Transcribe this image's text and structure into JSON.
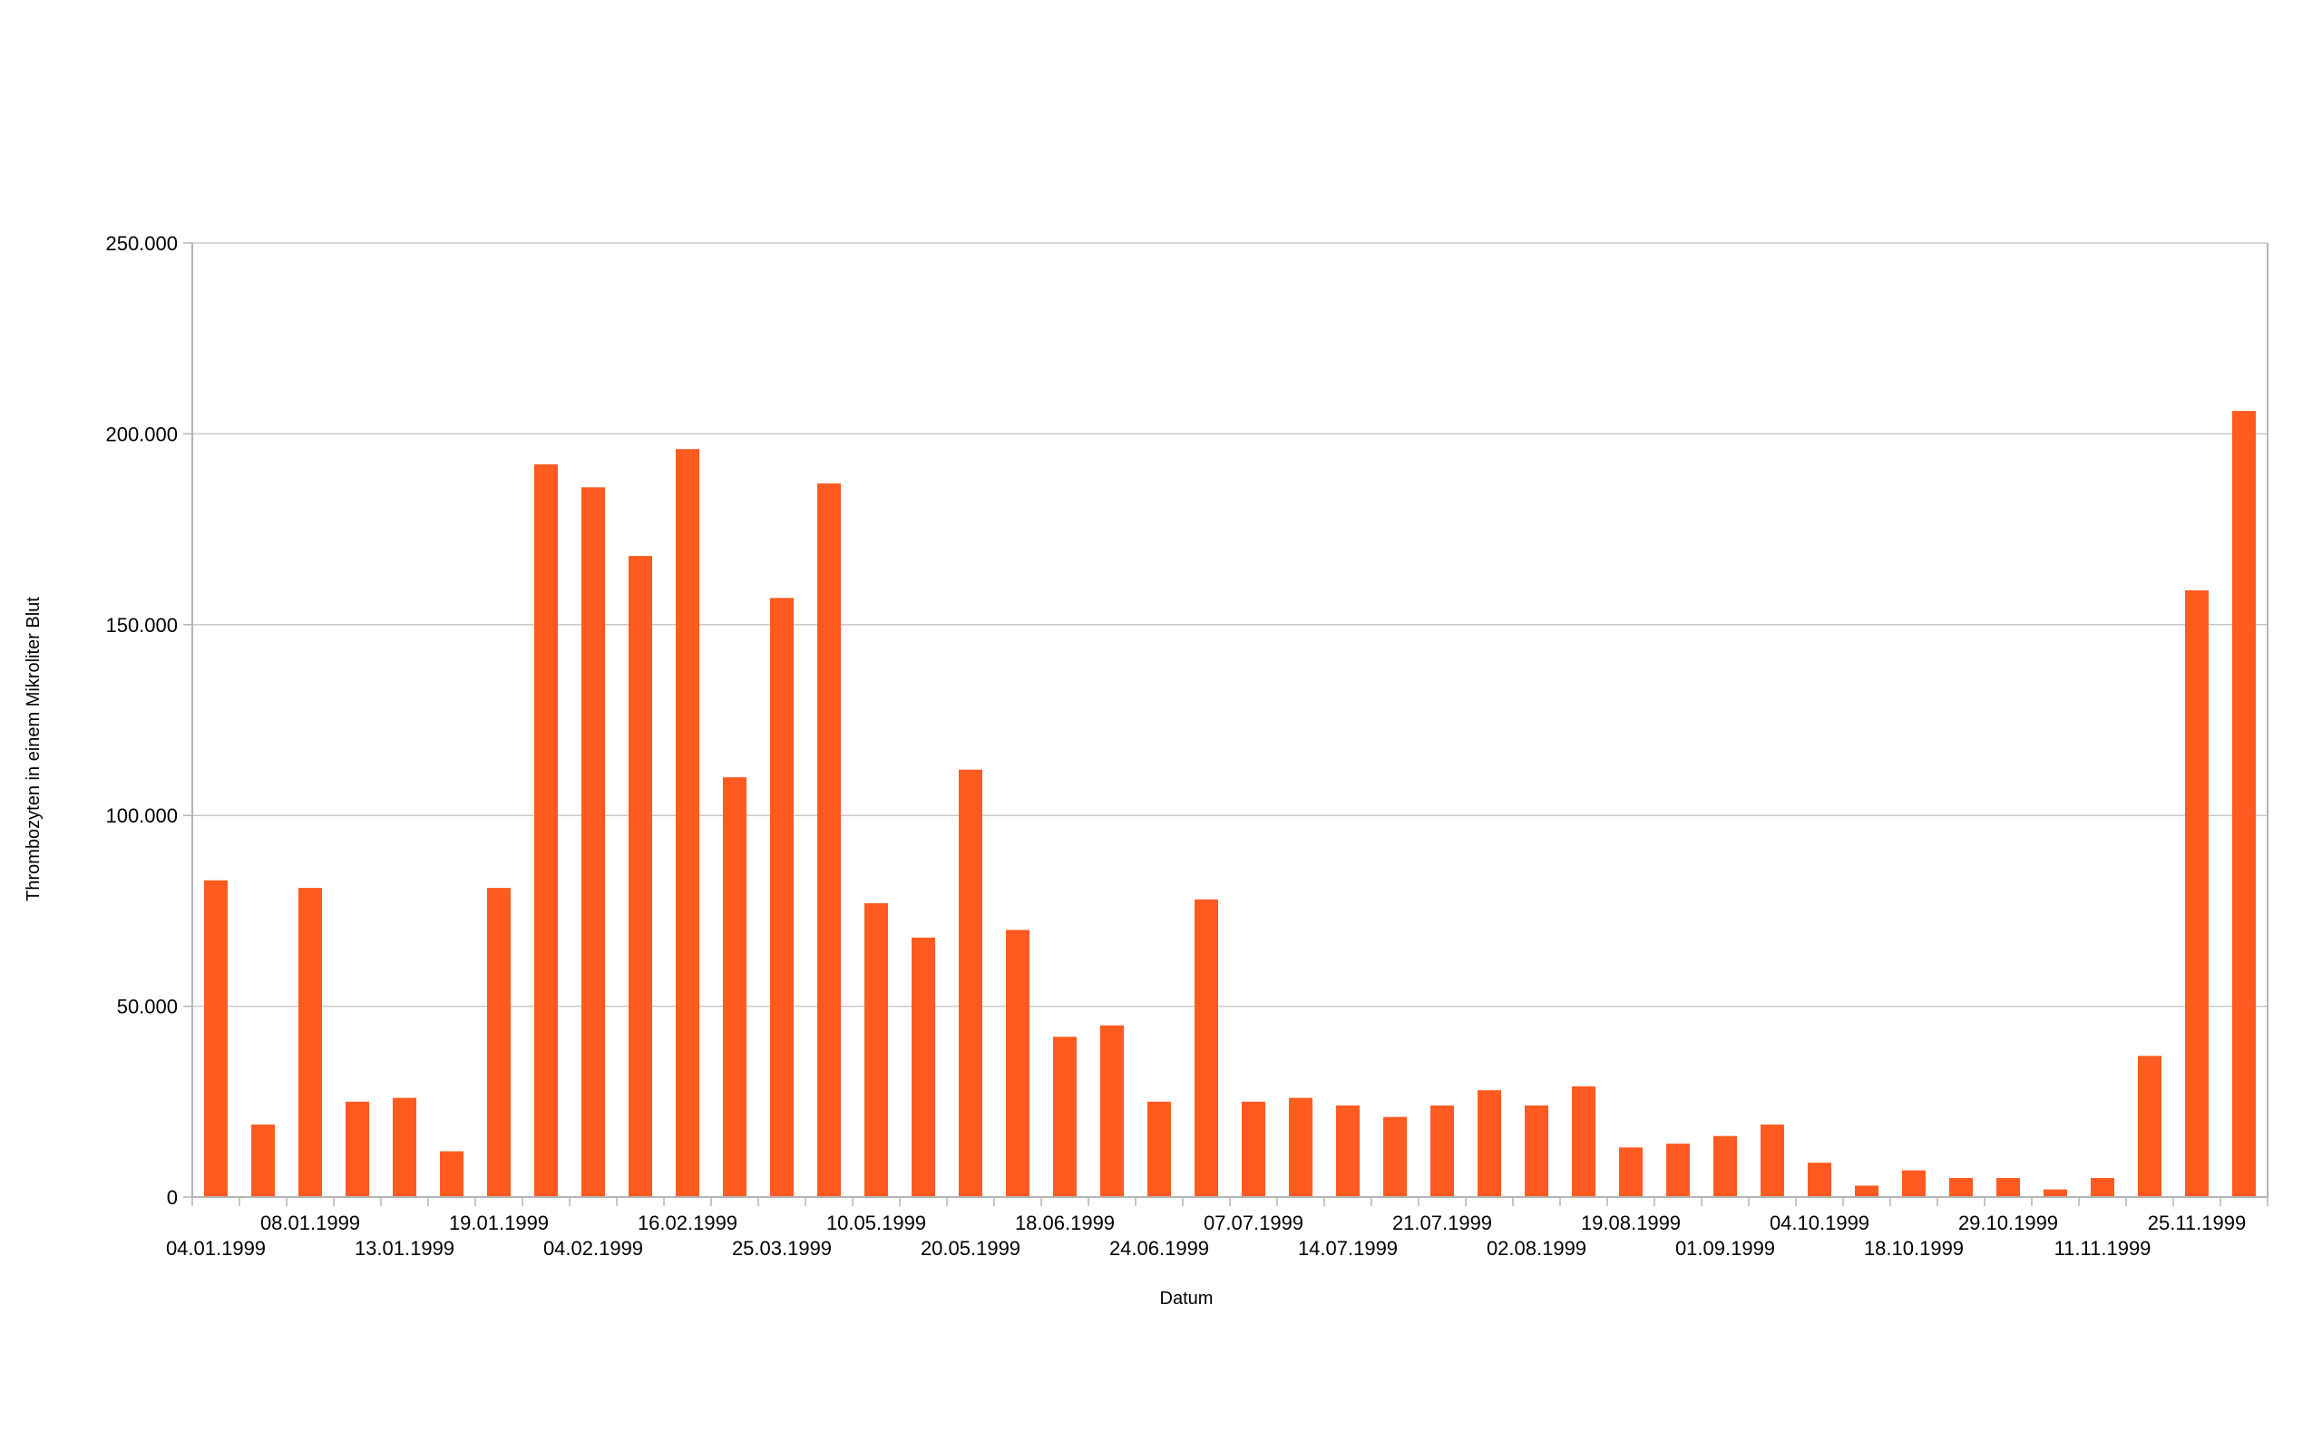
{
  "chart_data": {
    "type": "bar",
    "title": "",
    "xlabel": "Datum",
    "ylabel": "Thrombozyten in einem Mikroliter Blut",
    "ylim": [
      0,
      250000
    ],
    "yticks": [
      0,
      50000,
      100000,
      150000,
      200000,
      250000
    ],
    "ytick_labels": [
      "0",
      "50.000",
      "100.000",
      "150.000",
      "200.000",
      "250.000"
    ],
    "grid": true,
    "legend": "none",
    "bar_color": "#ff5a1f",
    "grid_color": "#c8c8c8",
    "axis_color": "#b4b4b4",
    "values": [
      83000,
      19000,
      81000,
      25000,
      26000,
      12000,
      81000,
      192000,
      186000,
      168000,
      196000,
      110000,
      157000,
      187000,
      77000,
      68000,
      112000,
      70000,
      42000,
      45000,
      25000,
      78000,
      25000,
      26000,
      24000,
      21000,
      24000,
      28000,
      24000,
      29000,
      13000,
      14000,
      16000,
      19000,
      9000,
      3000,
      7000,
      5000,
      5000,
      2000,
      5000,
      37000,
      159000,
      206000
    ],
    "x_tick_labels": [
      {
        "index": 0,
        "label": "04.01.1999",
        "row": 2
      },
      {
        "index": 2,
        "label": "08.01.1999",
        "row": 1
      },
      {
        "index": 4,
        "label": "13.01.1999",
        "row": 2
      },
      {
        "index": 6,
        "label": "19.01.1999",
        "row": 1
      },
      {
        "index": 8,
        "label": "04.02.1999",
        "row": 2
      },
      {
        "index": 10,
        "label": "16.02.1999",
        "row": 1
      },
      {
        "index": 12,
        "label": "25.03.1999",
        "row": 2
      },
      {
        "index": 14,
        "label": "10.05.1999",
        "row": 1
      },
      {
        "index": 16,
        "label": "20.05.1999",
        "row": 2
      },
      {
        "index": 18,
        "label": "18.06.1999",
        "row": 1
      },
      {
        "index": 20,
        "label": "24.06.1999",
        "row": 2
      },
      {
        "index": 22,
        "label": "07.07.1999",
        "row": 1
      },
      {
        "index": 24,
        "label": "14.07.1999",
        "row": 2
      },
      {
        "index": 26,
        "label": "21.07.1999",
        "row": 1
      },
      {
        "index": 28,
        "label": "02.08.1999",
        "row": 2
      },
      {
        "index": 30,
        "label": "19.08.1999",
        "row": 1
      },
      {
        "index": 32,
        "label": "01.09.1999",
        "row": 2
      },
      {
        "index": 34,
        "label": "04.10.1999",
        "row": 1
      },
      {
        "index": 36,
        "label": "18.10.1999",
        "row": 2
      },
      {
        "index": 38,
        "label": "29.10.1999",
        "row": 1
      },
      {
        "index": 40,
        "label": "11.11.1999",
        "row": 2
      },
      {
        "index": 42,
        "label": "25.11.1999",
        "row": 1
      }
    ]
  }
}
